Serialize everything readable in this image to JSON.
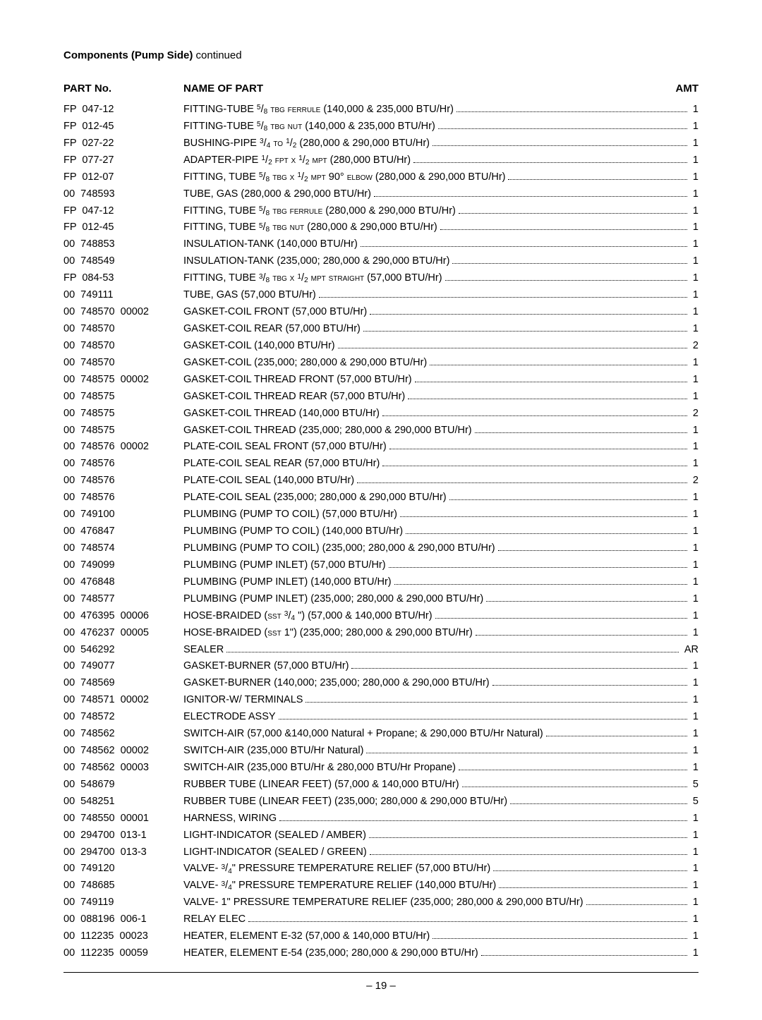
{
  "section_title_bold": "Components (Pump Side)",
  "section_title_rest": " continued",
  "headers": {
    "partno": "PART No.",
    "name": "NAME OF PART",
    "amt": "AMT"
  },
  "page_number": "– 19 –",
  "parts": [
    {
      "pn": "FP  047-12",
      "desc": "FITTING-TUBE <sup>5</sup>/<sub>8</sub> <span class='sc'>tbg ferrule</span> (140,000 & 235,000 BTU/Hr)",
      "amt": "1"
    },
    {
      "pn": "FP  012-45",
      "desc": "FITTING-TUBE <sup>5</sup>/<sub>8</sub> <span class='sc'>tbg nut</span> (140,000 & 235,000 BTU/Hr)",
      "amt": "1"
    },
    {
      "pn": "FP  027-22",
      "desc": "BUSHING-PIPE <sup>3</sup>/<sub>4</sub> <span class='sc'>to</span> <sup>1</sup>/<sub>2</sub> (280,000 & 290,000 BTU/Hr)",
      "amt": "1"
    },
    {
      "pn": "FP  077-27",
      "desc": "ADAPTER-PIPE <sup>1</sup>/<sub>2</sub> <span class='sc'>fpt x</span> <sup>1</sup>/<sub>2</sub> <span class='sc'>mpt</span> (280,000 BTU/Hr)",
      "amt": "1"
    },
    {
      "pn": "FP  012-07",
      "desc": "FITTING, TUBE <sup>5</sup>/<sub>8</sub> <span class='sc'>tbg x</span> <sup>1</sup>/<sub>2</sub> <span class='sc'>mpt</span> 90° <span class='sc'>elbow</span> (280,000 & 290,000 BTU/Hr)",
      "amt": "1"
    },
    {
      "pn": "00  748593",
      "desc": "TUBE, GAS (280,000 & 290,000 BTU/Hr)",
      "amt": "1"
    },
    {
      "pn": "FP  047-12",
      "desc": "FITTING, TUBE <sup>5</sup>/<sub>8</sub> <span class='sc'>tbg ferrule</span> (280,000 & 290,000 BTU/Hr)",
      "amt": "1"
    },
    {
      "pn": "FP  012-45",
      "desc": "FITTING, TUBE <sup>5</sup>/<sub>8</sub> <span class='sc'>tbg nut</span> (280,000 & 290,000 BTU/Hr)",
      "amt": "1"
    },
    {
      "pn": "00  748853",
      "desc": "INSULATION-TANK (140,000 BTU/Hr)",
      "amt": "1"
    },
    {
      "pn": "00  748549",
      "desc": "INSULATION-TANK (235,000; 280,000 & 290,000 BTU/Hr)",
      "amt": "1"
    },
    {
      "pn": "FP  084-53",
      "desc": "FITTING, TUBE <sup>3</sup>/<sub>8</sub> <span class='sc'>tbg x</span> <sup>1</sup>/<sub>2</sub> <span class='sc'>mpt straight</span> (57,000 BTU/Hr)",
      "amt": "1"
    },
    {
      "pn": "00  749111",
      "desc": "TUBE, GAS (57,000 BTU/Hr)",
      "amt": "1"
    },
    {
      "pn": "00  748570  00002",
      "desc": "GASKET-COIL FRONT (57,000 BTU/Hr)",
      "amt": "1"
    },
    {
      "pn": "00  748570",
      "desc": "GASKET-COIL REAR (57,000 BTU/Hr)",
      "amt": "1"
    },
    {
      "pn": "00  748570",
      "desc": "GASKET-COIL (140,000 BTU/Hr)",
      "amt": "2"
    },
    {
      "pn": "00  748570",
      "desc": "GASKET-COIL (235,000; 280,000 & 290,000 BTU/Hr)",
      "amt": "1"
    },
    {
      "pn": "00  748575  00002",
      "desc": "GASKET-COIL THREAD FRONT (57,000 BTU/Hr)",
      "amt": "1"
    },
    {
      "pn": "00  748575",
      "desc": "GASKET-COIL THREAD REAR (57,000 BTU/Hr)",
      "amt": "1"
    },
    {
      "pn": "00  748575",
      "desc": "GASKET-COIL THREAD (140,000 BTU/Hr)",
      "amt": "2"
    },
    {
      "pn": "00  748575",
      "desc": "GASKET-COIL THREAD (235,000; 280,000 & 290,000 BTU/Hr)",
      "amt": "1"
    },
    {
      "pn": "00  748576  00002",
      "desc": "PLATE-COIL SEAL FRONT (57,000 BTU/Hr)",
      "amt": "1"
    },
    {
      "pn": "00  748576",
      "desc": "PLATE-COIL SEAL REAR (57,000 BTU/Hr)",
      "amt": "1"
    },
    {
      "pn": "00  748576",
      "desc": "PLATE-COIL SEAL (140,000 BTU/Hr)",
      "amt": "2"
    },
    {
      "pn": "00  748576",
      "desc": "PLATE-COIL SEAL (235,000; 280,000 & 290,000 BTU/Hr)",
      "amt": "1"
    },
    {
      "pn": "00  749100",
      "desc": "PLUMBING (PUMP TO COIL) (57,000 BTU/Hr)",
      "amt": "1"
    },
    {
      "pn": "00  476847",
      "desc": "PLUMBING (PUMP TO COIL) (140,000 BTU/Hr)",
      "amt": "1"
    },
    {
      "pn": "00  748574",
      "desc": "PLUMBING (PUMP TO COIL) (235,000; 280,000 & 290,000 BTU/Hr)",
      "amt": "1"
    },
    {
      "pn": "00  749099",
      "desc": "PLUMBING (PUMP INLET) (57,000 BTU/Hr)",
      "amt": "1"
    },
    {
      "pn": "00  476848",
      "desc": "PLUMBING (PUMP INLET) (140,000 BTU/Hr)",
      "amt": "1"
    },
    {
      "pn": "00  748577",
      "desc": "PLUMBING (PUMP INLET) (235,000; 280,000 & 290,000 BTU/Hr)",
      "amt": "1"
    },
    {
      "pn": "00  476395  00006",
      "desc": "HOSE-BRAIDED (<span class='sc'>sst</span> <sup>3</sup>/<sub>4</sub> \") (57,000 & 140,000 BTU/Hr)",
      "amt": "1"
    },
    {
      "pn": "00  476237  00005",
      "desc": "HOSE-BRAIDED (<span class='sc'>sst</span> 1\") (235,000; 280,000 & 290,000 BTU/Hr)",
      "amt": "1"
    },
    {
      "pn": "00  546292",
      "desc": "SEALER",
      "amt": "AR"
    },
    {
      "pn": "00  749077",
      "desc": "GASKET-BURNER (57,000 BTU/Hr)",
      "amt": "1"
    },
    {
      "pn": "00  748569",
      "desc": "GASKET-BURNER (140,000; 235,000; 280,000 & 290,000 BTU/Hr)",
      "amt": "1"
    },
    {
      "pn": "00  748571  00002",
      "desc": "IGNITOR-W/ TERMINALS",
      "amt": "1"
    },
    {
      "pn": "00  748572",
      "desc": "ELECTRODE ASSY",
      "amt": "1"
    },
    {
      "pn": "00  748562",
      "desc": "SWITCH-AIR (57,000 &140,000 Natural + Propane; & 290,000 BTU/Hr Natural)",
      "amt": "1"
    },
    {
      "pn": "00  748562  00002",
      "desc": "SWITCH-AIR (235,000 BTU/Hr Natural)",
      "amt": "1"
    },
    {
      "pn": "00  748562  00003",
      "desc": "SWITCH-AIR (235,000 BTU/Hr & 280,000 BTU/Hr Propane)",
      "amt": "1"
    },
    {
      "pn": "00  548679",
      "desc": "RUBBER TUBE (LINEAR FEET) (57,000 & 140,000 BTU/Hr)",
      "amt": "5"
    },
    {
      "pn": "00  548251",
      "desc": "RUBBER TUBE (LINEAR FEET) (235,000; 280,000 & 290,000 BTU/Hr)",
      "amt": "5"
    },
    {
      "pn": "00  748550  00001",
      "desc": "HARNESS, WIRING",
      "amt": "1"
    },
    {
      "pn": "00  294700  013-1",
      "desc": "LIGHT-INDICATOR (SEALED / AMBER)",
      "amt": "1"
    },
    {
      "pn": "00  294700  013-3",
      "desc": "LIGHT-INDICATOR (SEALED / GREEN)",
      "amt": "1"
    },
    {
      "pn": "00  749120",
      "desc": "VALVE- <sup>3</sup>/<sub>4</sub>\" PRESSURE TEMPERATURE RELIEF (57,000 BTU/Hr)",
      "amt": "1"
    },
    {
      "pn": "00  748685",
      "desc": "VALVE- <sup>3</sup>/<sub>4</sub>\" PRESSURE TEMPERATURE RELIEF (140,000 BTU/Hr)",
      "amt": "1"
    },
    {
      "pn": "00  749119",
      "desc": "VALVE- 1\" PRESSURE TEMPERATURE RELIEF (235,000; 280,000 & 290,000 BTU/Hr)",
      "amt": "1"
    },
    {
      "pn": "00  088196  006-1",
      "desc": "RELAY ELEC",
      "amt": "1"
    },
    {
      "pn": "00  112235  00023",
      "desc": "HEATER, ELEMENT E-32 (57,000 & 140,000 BTU/Hr)",
      "amt": "1"
    },
    {
      "pn": "00  112235  00059",
      "desc": "HEATER, ELEMENT E-54 (235,000; 280,000 & 290,000 BTU/Hr)",
      "amt": "1"
    }
  ]
}
